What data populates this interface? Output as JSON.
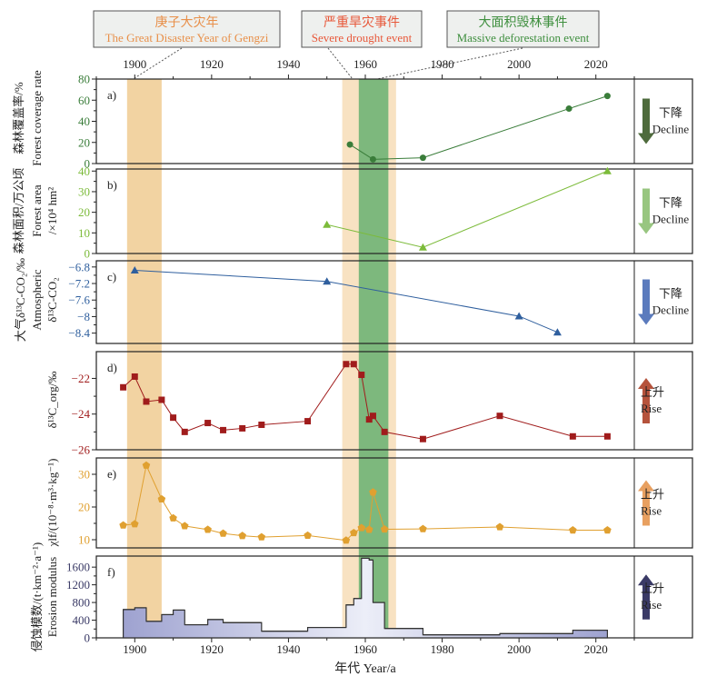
{
  "legend_boxes": [
    {
      "zh": "庚子大灾年",
      "en": "The Great Disaster Year of Gengzi",
      "color": "#e8904a"
    },
    {
      "zh": "严重旱灾事件",
      "en": "Severe drought event",
      "color": "#e8583a"
    },
    {
      "zh": "大面积毁林事件",
      "en": "Massive deforestation event",
      "color": "#3f8f3f"
    }
  ],
  "chart_data": {
    "type": "line",
    "xlabel": "年代 Year/a",
    "xlim": [
      1890,
      2030
    ],
    "xticks": [
      1900,
      1920,
      1940,
      1960,
      1980,
      2000,
      2020
    ],
    "bands": [
      {
        "from": 1898,
        "to": 1907,
        "color": "#f2d3a2"
      },
      {
        "from": 1954,
        "to": 1968,
        "color": "#f8e2c2"
      },
      {
        "from": 1958.3,
        "to": 1966,
        "color": "#7db87d"
      }
    ],
    "panels": [
      {
        "label": "a)",
        "type": "line",
        "marker": "circle",
        "color": "#3a7d3a",
        "ylabel": [
          "森林覆盖率/%",
          "Forest coverage rate"
        ],
        "ylim": [
          0,
          80
        ],
        "yticks": [
          0,
          20,
          40,
          60,
          80
        ],
        "x": [
          1956,
          1962,
          1975,
          2013,
          2023
        ],
        "y": [
          18,
          4,
          5.5,
          52,
          64
        ],
        "trend": {
          "direction": "down",
          "zh": "下降",
          "en": "Decline",
          "color": "#4e6b3c"
        }
      },
      {
        "label": "b)",
        "type": "line",
        "marker": "triangle",
        "color": "#7cbb3a",
        "ylabel": [
          "森林面积/万公顷",
          "Forest area",
          "/×10⁴ hm²"
        ],
        "ylim": [
          0,
          41
        ],
        "yticks": [
          0,
          10,
          20,
          30,
          40
        ],
        "x": [
          1950,
          1975,
          2023
        ],
        "y": [
          14,
          3,
          40
        ],
        "trend": {
          "direction": "down",
          "zh": "下降",
          "en": "Decline",
          "color": "#98c680"
        }
      },
      {
        "label": "c)",
        "type": "line",
        "marker": "triangle",
        "color": "#2f5f9e",
        "ylabel": [
          "大气δ¹³C-CO₂/‰",
          "Atmospheric",
          "δ¹³C-CO₂"
        ],
        "ylim": [
          -8.65,
          -6.65
        ],
        "yticks": [
          -6.8,
          -7.2,
          -7.6,
          -8.0,
          -8.4
        ],
        "x": [
          1900,
          1950,
          2000,
          2010
        ],
        "y": [
          -6.88,
          -7.15,
          -7.99,
          -8.38
        ],
        "trend": {
          "direction": "down",
          "zh": "下降",
          "en": "Decline",
          "color": "#5b7bbd"
        }
      },
      {
        "label": "d)",
        "type": "line",
        "marker": "square",
        "color": "#a01c1c",
        "ylabel": [
          "δ¹³C_org/‰"
        ],
        "ylim": [
          -26,
          -20.5
        ],
        "yticks": [
          -22,
          -24,
          -26
        ],
        "x": [
          1897,
          1900,
          1903,
          1907,
          1910,
          1913,
          1919,
          1923,
          1928,
          1933,
          1945,
          1955,
          1957,
          1959,
          1961,
          1962,
          1965,
          1975,
          1995,
          2014,
          2023
        ],
        "y": [
          -22.5,
          -21.9,
          -23.3,
          -23.2,
          -24.2,
          -25.0,
          -24.5,
          -24.9,
          -24.8,
          -24.6,
          -24.4,
          -21.2,
          -21.2,
          -21.8,
          -24.3,
          -24.1,
          -25.0,
          -25.4,
          -24.1,
          -25.25,
          -25.25
        ],
        "trend": {
          "direction": "up",
          "zh": "上升",
          "en": "Rise",
          "color": "#b5533c"
        }
      },
      {
        "label": "e)",
        "type": "line",
        "marker": "pentagon",
        "color": "#e0a030",
        "ylabel": [
          "χlf/(10⁻⁸·m³·kg⁻¹)"
        ],
        "ylim": [
          7.5,
          35
        ],
        "yticks": [
          10,
          20,
          30
        ],
        "x": [
          1897,
          1900,
          1903,
          1907,
          1910,
          1913,
          1919,
          1923,
          1928,
          1933,
          1945,
          1955,
          1957,
          1959,
          1961,
          1962,
          1965,
          1975,
          1995,
          2014,
          2023
        ],
        "y": [
          14.4,
          14.8,
          32.7,
          22.4,
          16.6,
          14.2,
          13.1,
          11.9,
          11.2,
          10.8,
          11.3,
          9.8,
          12.1,
          13.6,
          13.1,
          24.5,
          13.2,
          13.3,
          13.9,
          12.9,
          12.9
        ],
        "trend": {
          "direction": "up",
          "zh": "上升",
          "en": "Rise",
          "color": "#e8a060"
        }
      },
      {
        "label": "f)",
        "type": "step-area",
        "color": "#3a3a66",
        "ylabel": [
          "侵蚀模数/(t·km⁻²·a⁻¹)",
          "Erosion modulus"
        ],
        "ylim": [
          0,
          1850
        ],
        "yticks": [
          0,
          400,
          800,
          1200,
          1600
        ],
        "steps": [
          {
            "from": 1897,
            "to": 1900,
            "value": 640
          },
          {
            "from": 1900,
            "to": 1903,
            "value": 680
          },
          {
            "from": 1903,
            "to": 1907,
            "value": 374
          },
          {
            "from": 1907,
            "to": 1910,
            "value": 525
          },
          {
            "from": 1910,
            "to": 1913,
            "value": 628
          },
          {
            "from": 1913,
            "to": 1919,
            "value": 297
          },
          {
            "from": 1919,
            "to": 1923,
            "value": 414
          },
          {
            "from": 1923,
            "to": 1933,
            "value": 345
          },
          {
            "from": 1933,
            "to": 1945,
            "value": 152
          },
          {
            "from": 1945,
            "to": 1955,
            "value": 235
          },
          {
            "from": 1955,
            "to": 1957,
            "value": 745
          },
          {
            "from": 1957,
            "to": 1959,
            "value": 890
          },
          {
            "from": 1959,
            "to": 1961,
            "value": 1800
          },
          {
            "from": 1961,
            "to": 1962,
            "value": 1760
          },
          {
            "from": 1962,
            "to": 1965,
            "value": 800
          },
          {
            "from": 1965,
            "to": 1975,
            "value": 214
          },
          {
            "from": 1975,
            "to": 1995,
            "value": 69
          },
          {
            "from": 1995,
            "to": 2014,
            "value": 95
          },
          {
            "from": 2014,
            "to": 2023,
            "value": 173
          }
        ],
        "trend": {
          "direction": "up",
          "zh": "上升",
          "en": "Rise",
          "color": "#3a3a66"
        }
      }
    ]
  }
}
